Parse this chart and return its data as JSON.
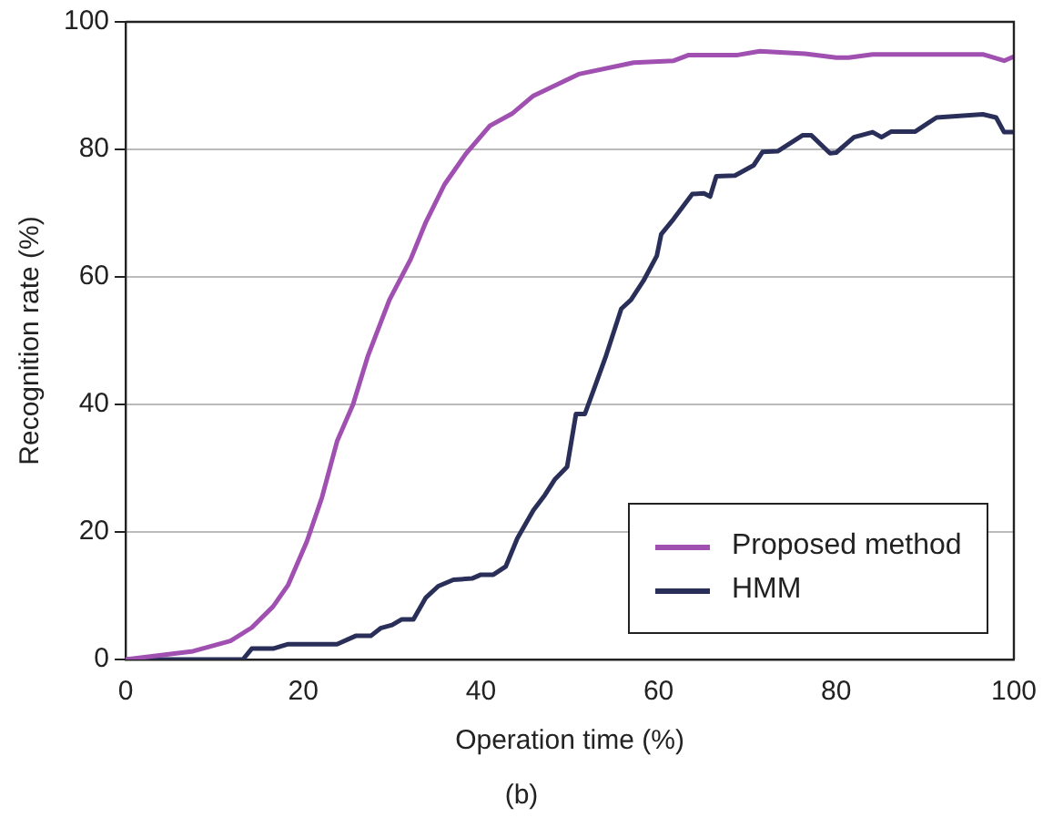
{
  "chart_data": {
    "type": "line",
    "xlabel": "Operation time (%)",
    "ylabel": "Recognition rate (%)",
    "annotations": [
      "(b)"
    ],
    "xlim": [
      0,
      100
    ],
    "xticks": [
      0,
      20,
      40,
      60,
      80,
      100
    ],
    "ylim": [
      0,
      100
    ],
    "yticks": [
      0,
      20,
      40,
      60,
      80,
      100
    ],
    "grid": "y",
    "legend": "bottom right",
    "marker": "none",
    "line_style": "solid",
    "series": [
      {
        "name": "Proposed method",
        "color": "#a050b0",
        "x": [
          0,
          7.6,
          11.8,
          14.2,
          16.6,
          18.3,
          20.4,
          22.1,
          23.8,
          25.6,
          27.3,
          29.7,
          32.1,
          33.8,
          35.9,
          38.3,
          41,
          43.5,
          45.9,
          51,
          57.2,
          61.7,
          63.4,
          68.9,
          71.4,
          76.5,
          80,
          81.4,
          84.1,
          96.5,
          98.9,
          99.9
        ],
        "values": [
          0,
          1.3,
          2.9,
          5,
          8.3,
          11.7,
          18.5,
          25.4,
          34.2,
          40,
          47.7,
          56.4,
          62.8,
          68.6,
          74.5,
          79.3,
          83.7,
          85.6,
          88.4,
          91.8,
          93.6,
          93.9,
          94.8,
          94.8,
          95.4,
          95,
          94.4,
          94.4,
          94.9,
          94.9,
          93.9,
          94.5
        ]
      },
      {
        "name": "HMM",
        "color": "#2a2f5a",
        "x": [
          0,
          13.2,
          14.2,
          16.6,
          18.3,
          23.8,
          25.9,
          27.6,
          28.7,
          30,
          31.1,
          32.4,
          33.8,
          35.2,
          36.9,
          39,
          40,
          41.4,
          42.8,
          44.1,
          45.9,
          47.2,
          48.3,
          49.7,
          50.7,
          51.7,
          52.7,
          54.1,
          55.8,
          56.9,
          58.3,
          59.8,
          60.3,
          61.7,
          63.8,
          65.1,
          65.8,
          66.5,
          68.6,
          70.7,
          71.7,
          73.4,
          76.2,
          77.2,
          79.3,
          80,
          82,
          84.1,
          85.1,
          86.2,
          88.9,
          91.3,
          96.5,
          98,
          98.9,
          99.9
        ],
        "values": [
          0,
          0,
          1.7,
          1.7,
          2.4,
          2.4,
          3.7,
          3.7,
          4.9,
          5.4,
          6.3,
          6.3,
          9.7,
          11.5,
          12.5,
          12.7,
          13.3,
          13.3,
          14.6,
          19,
          23.4,
          25.8,
          28.2,
          30.2,
          38.5,
          38.5,
          42.3,
          47.7,
          55,
          56.4,
          59.4,
          63.3,
          66.7,
          69.1,
          73,
          73.1,
          72.6,
          75.8,
          75.9,
          77.5,
          79.6,
          79.7,
          82.2,
          82.2,
          79.4,
          79.5,
          81.9,
          82.7,
          81.9,
          82.8,
          82.8,
          85,
          85.5,
          85,
          82.7,
          82.7
        ]
      }
    ]
  }
}
